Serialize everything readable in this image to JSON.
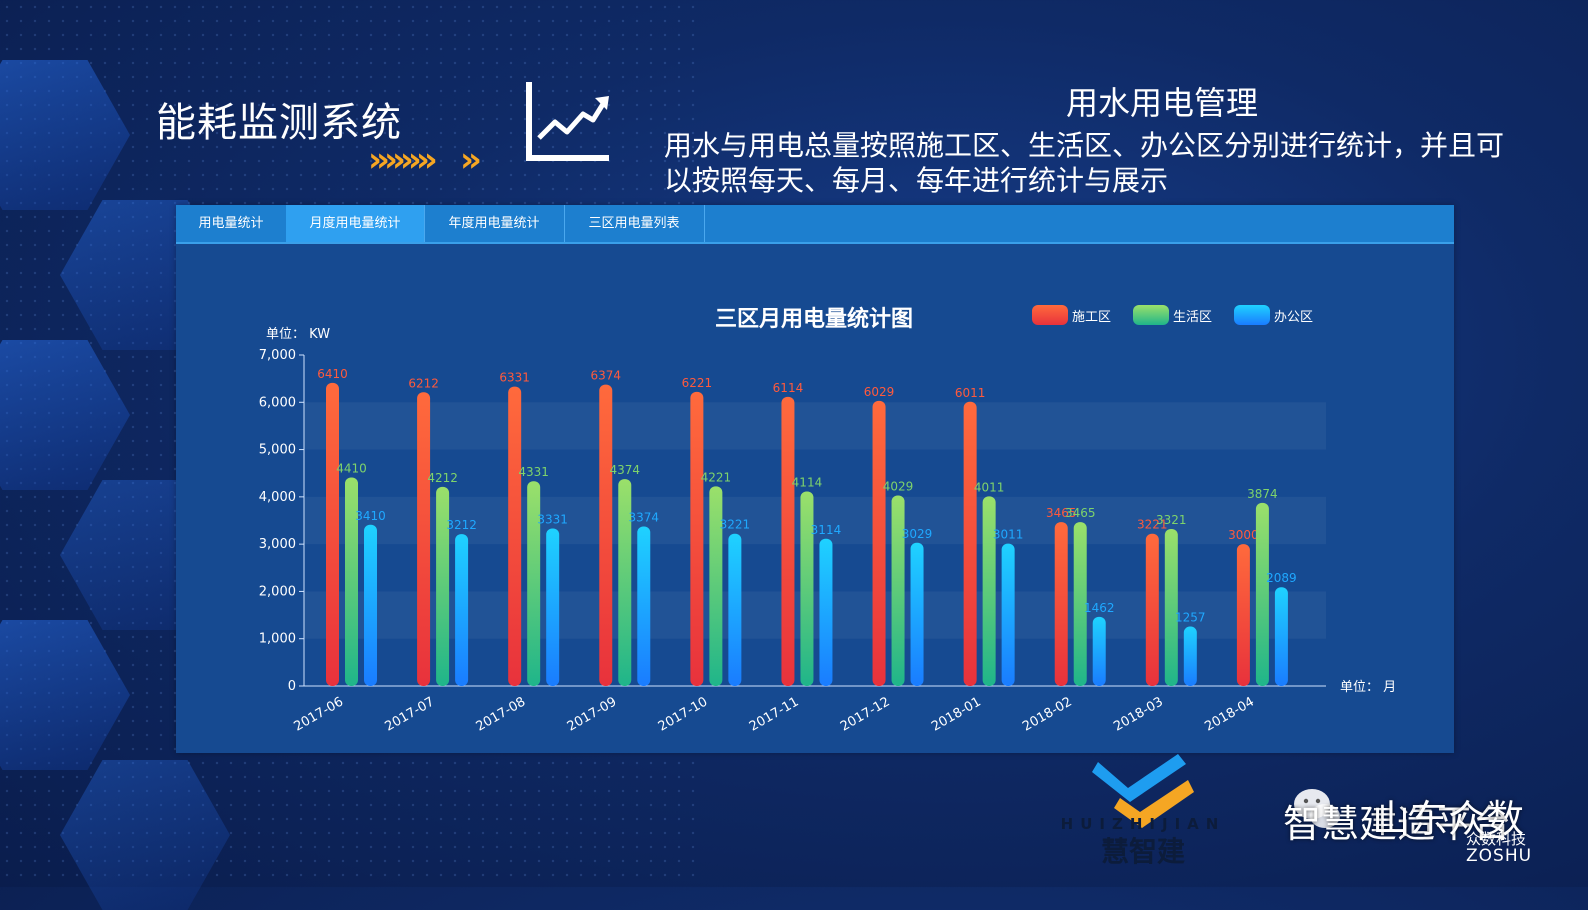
{
  "header": {
    "system_title": "能耗监测系统",
    "chevrons": "»»»»",
    "chevron_single": "»",
    "section_title": "用水用电管理",
    "description": "用水与用电总量按照施工区、生活区、办公区分别进行统计，并且可以按照每天、每月、每年进行统计与展示"
  },
  "tabs": [
    {
      "label": "用电量统计",
      "active": false
    },
    {
      "label": "月度用电量统计",
      "active": true
    },
    {
      "label": "年度用电量统计",
      "active": false
    },
    {
      "label": "三区用电量列表",
      "active": false
    }
  ],
  "chart_data": {
    "type": "bar",
    "title": "三区月用电量统计图",
    "ylabel": "单位： KW",
    "xlabel": "单位： 月",
    "ylim": [
      0,
      7000
    ],
    "yticks": [
      "0",
      "1,000",
      "2,000",
      "3,000",
      "4,000",
      "5,000",
      "6,000",
      "7,000"
    ],
    "categories": [
      "2017-06",
      "2017-07",
      "2017-08",
      "2017-09",
      "2017-10",
      "2017-11",
      "2017-12",
      "2018-01",
      "2018-02",
      "2018-03",
      "2018-04"
    ],
    "series": [
      {
        "name": "施工区",
        "color": "#ff5a3c",
        "values": [
          6410,
          6212,
          6331,
          6374,
          6221,
          6114,
          6029,
          6011,
          3465,
          3221,
          3000
        ]
      },
      {
        "name": "生活区",
        "color": "#7ed36b",
        "values": [
          4410,
          4212,
          4331,
          4374,
          4221,
          4114,
          4029,
          4011,
          3465,
          3321,
          3874
        ]
      },
      {
        "name": "办公区",
        "color": "#1fa8ff",
        "values": [
          3410,
          3212,
          3331,
          3374,
          3221,
          3114,
          3029,
          3011,
          1462,
          1257,
          2089
        ]
      }
    ],
    "legend_position": "top-right",
    "grid": true
  },
  "logo": {
    "latin": "HUIZHIJIAN",
    "chinese": "慧智建"
  },
  "watermark": {
    "main": "智慧建造平台",
    "overlay": "山东众数",
    "sub_cn": "众数科技",
    "sub_en": "ZOSHU"
  }
}
